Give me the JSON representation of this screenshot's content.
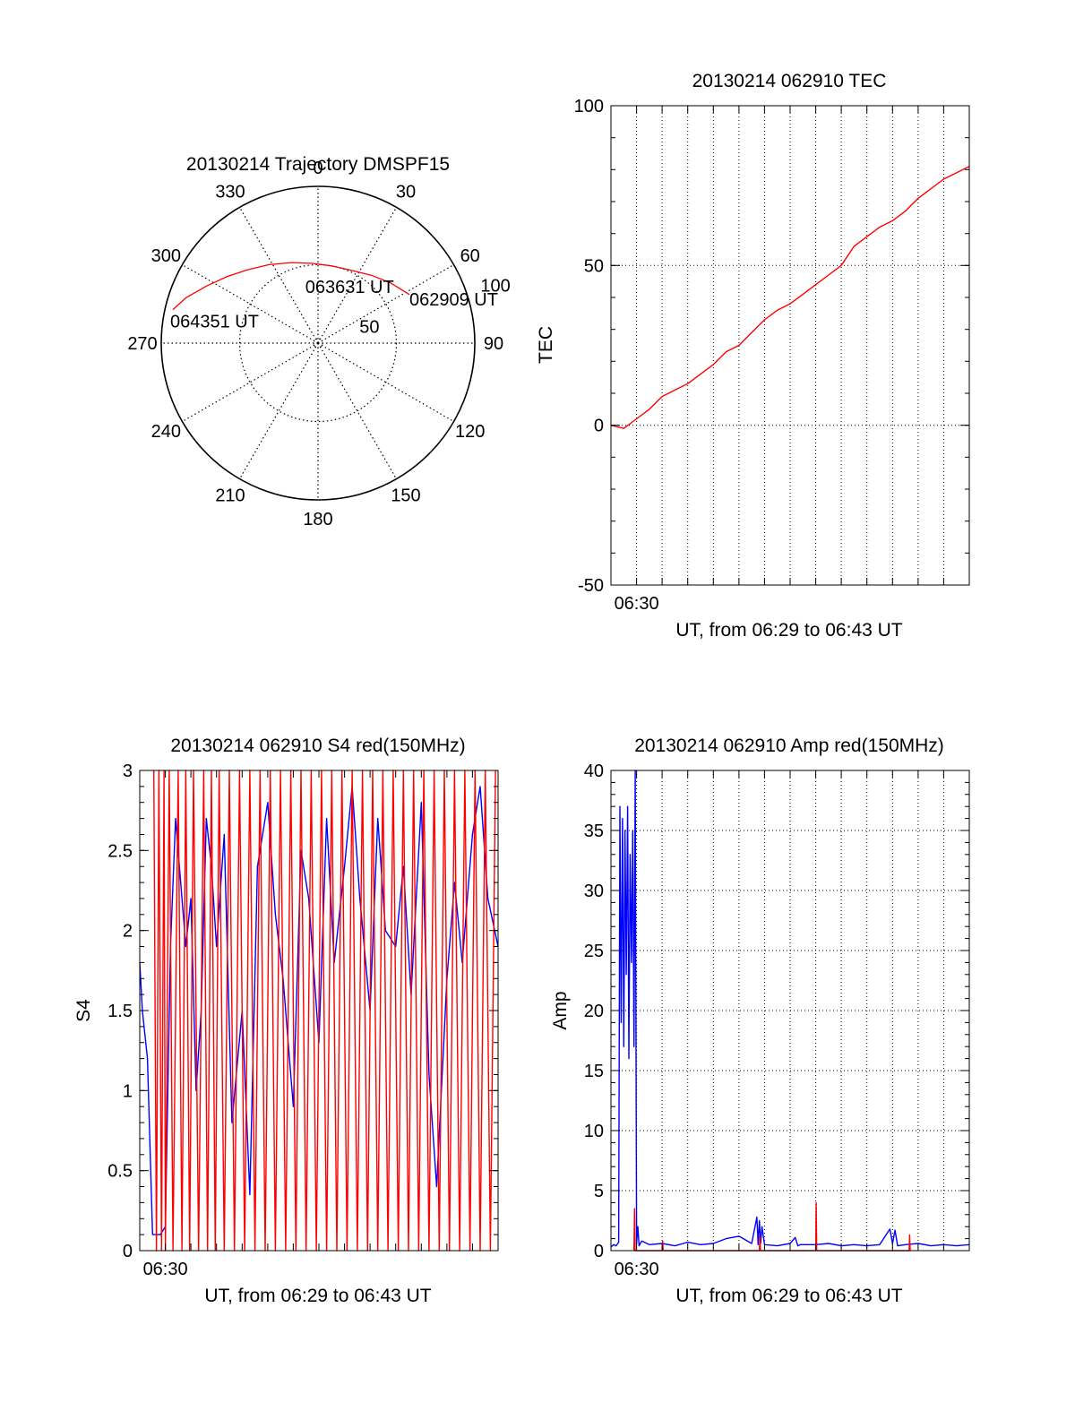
{
  "chart_data": [
    {
      "id": "trajectory",
      "type": "polar",
      "title": "20130214 Trajectory DMSPF15",
      "azimuth_labels": [
        "0",
        "30",
        "60",
        "90",
        "120",
        "150",
        "180",
        "210",
        "240",
        "270",
        "300",
        "330"
      ],
      "azimuth_values": [
        0,
        30,
        60,
        90,
        120,
        150,
        180,
        210,
        240,
        270,
        300,
        330
      ],
      "rings": [
        0,
        50,
        100
      ],
      "ring_labels": [
        {
          "value": 50,
          "text": "50"
        },
        {
          "value": 100,
          "text": "100"
        }
      ],
      "radius_max": 100,
      "grid": true,
      "track_color": "#ff0000",
      "track": [
        {
          "az": 62,
          "r": 66
        },
        {
          "az": 50,
          "r": 60
        },
        {
          "az": 38,
          "r": 55
        },
        {
          "az": 24,
          "r": 51
        },
        {
          "az": 10,
          "r": 50
        },
        {
          "az": -4,
          "r": 51
        },
        {
          "az": -18,
          "r": 54
        },
        {
          "az": -32,
          "r": 59
        },
        {
          "az": -44,
          "r": 65
        },
        {
          "az": -54,
          "r": 72
        },
        {
          "az": -63,
          "r": 80
        },
        {
          "az": -71,
          "r": 89
        },
        {
          "az": -77,
          "r": 95
        }
      ],
      "annotations": [
        {
          "text": "062909 UT",
          "az": 62,
          "r": 66
        },
        {
          "text": "063631 UT",
          "az": 10,
          "r": 50
        },
        {
          "text": "064351 UT",
          "az": -77,
          "r": 95
        }
      ]
    },
    {
      "id": "tec",
      "type": "line",
      "title": "20130214 062910 TEC",
      "xlabel": "UT, from 06:29 to 06:43 UT",
      "ylabel": "TEC",
      "xlim": [
        29.0,
        43.0
      ],
      "x_unit": "minute after 06:00 UT",
      "xticks": [
        {
          "value": 30,
          "label": "06:30"
        }
      ],
      "ylim": [
        -50,
        100
      ],
      "yticks": [
        -50,
        0,
        50,
        100
      ],
      "grid": true,
      "series": [
        {
          "color": "#ff0000",
          "x": [
            29.0,
            29.5,
            30.0,
            30.5,
            31.0,
            31.5,
            32.0,
            32.5,
            33.0,
            33.5,
            34.0,
            34.5,
            35.0,
            35.5,
            36.0,
            36.5,
            37.0,
            37.5,
            38.0,
            38.5,
            39.0,
            39.5,
            40.0,
            40.5,
            41.0,
            41.5,
            42.0,
            42.5,
            43.0
          ],
          "y": [
            0,
            -1,
            2,
            5,
            9,
            11,
            13,
            16,
            19,
            23,
            25,
            29,
            33,
            36,
            38,
            41,
            44,
            47,
            50,
            56,
            59,
            62,
            64,
            67,
            71,
            74,
            77,
            79,
            81
          ]
        }
      ]
    },
    {
      "id": "s4",
      "type": "line",
      "title": "20130214 062910 S4 red(150MHz)",
      "xlabel": "UT, from 06:29 to 06:43 UT",
      "ylabel": "S4",
      "xlim": [
        29.0,
        43.0
      ],
      "x_unit": "minute after 06:00 UT",
      "xticks": [
        {
          "value": 30,
          "label": "06:30"
        }
      ],
      "ylim": [
        0,
        3
      ],
      "yticks": [
        0,
        0.5,
        1,
        1.5,
        2,
        2.5,
        3
      ],
      "ytick_labels": [
        "0",
        "0.5",
        "1",
        "1.5",
        "2",
        "2.5",
        "3"
      ],
      "grid": false,
      "series": [
        {
          "color": "#0000ff",
          "x": [
            29.0,
            29.1,
            29.3,
            29.5,
            29.8,
            30.0,
            30.2,
            30.4,
            30.6,
            30.8,
            31.0,
            31.2,
            31.4,
            31.6,
            31.8,
            32.0,
            32.3,
            32.6,
            33.0,
            33.3,
            33.6,
            34.0,
            34.3,
            34.6,
            35.0,
            35.3,
            35.6,
            36.0,
            36.3,
            36.6,
            37.0,
            37.3,
            37.6,
            38.0,
            38.3,
            38.6,
            39.0,
            39.3,
            39.6,
            40.0,
            40.3,
            40.6,
            41.0,
            41.3,
            41.6,
            42.0,
            42.3,
            42.6,
            43.0
          ],
          "y": [
            1.8,
            1.5,
            1.2,
            0.1,
            0.1,
            0.15,
            1.9,
            2.7,
            2.3,
            1.9,
            2.2,
            1.0,
            1.5,
            2.7,
            2.4,
            1.9,
            2.6,
            0.8,
            1.5,
            0.35,
            2.4,
            2.8,
            2.1,
            1.7,
            0.9,
            2.5,
            2.2,
            1.3,
            2.7,
            1.8,
            2.4,
            2.9,
            2.2,
            1.5,
            2.7,
            2.0,
            1.9,
            2.4,
            1.6,
            2.8,
            1.1,
            0.4,
            1.7,
            2.3,
            1.8,
            2.6,
            2.9,
            2.2,
            1.9
          ]
        },
        {
          "color": "#ff0000",
          "x": [
            29.55,
            29.65,
            29.75,
            29.85,
            29.95,
            30.0,
            30.15,
            30.3,
            30.5,
            30.65,
            30.8,
            30.95,
            31.1,
            31.3,
            31.5,
            31.65,
            31.8,
            31.95,
            32.1,
            32.3,
            32.5,
            32.7,
            32.9,
            33.1,
            33.3,
            33.5,
            33.7,
            33.9,
            34.1,
            34.3,
            34.5,
            34.7,
            34.9,
            35.1,
            35.3,
            35.5,
            35.7,
            35.9,
            36.1,
            36.3,
            36.5,
            36.7,
            36.9,
            37.1,
            37.3,
            37.5,
            37.7,
            37.9,
            38.1,
            38.3,
            38.5,
            38.7,
            38.9,
            39.1,
            39.3,
            39.5,
            39.7,
            39.9,
            40.1,
            40.3,
            40.5,
            40.7,
            40.9,
            41.1,
            41.3,
            41.5,
            41.7,
            41.9,
            42.1,
            42.3,
            42.5,
            42.7,
            42.9
          ],
          "y": [
            3,
            0,
            3,
            0,
            3,
            0,
            3,
            0,
            3,
            0,
            3,
            0,
            3,
            0,
            3,
            0,
            3,
            0,
            3,
            0,
            3,
            0,
            3,
            0,
            3,
            0,
            3,
            0,
            3,
            0,
            3,
            0,
            3,
            0,
            3,
            0,
            3,
            0,
            3,
            0,
            3,
            0,
            3,
            0,
            3,
            0,
            3,
            0,
            3,
            0,
            3,
            0,
            3,
            0,
            3,
            0,
            3,
            0,
            3,
            0,
            3,
            0,
            3,
            0,
            3,
            0,
            3,
            0,
            3,
            0,
            3,
            0,
            3
          ]
        }
      ]
    },
    {
      "id": "amp",
      "type": "line",
      "title": "20130214 062910 Amp red(150MHz)",
      "xlabel": "UT, from 06:29 to 06:43 UT",
      "ylabel": "Amp",
      "xlim": [
        29.0,
        43.0
      ],
      "x_unit": "minute after 06:00 UT",
      "xticks": [
        {
          "value": 30,
          "label": "06:30"
        }
      ],
      "ylim": [
        0,
        40
      ],
      "yticks": [
        0,
        5,
        10,
        15,
        20,
        25,
        30,
        35,
        40
      ],
      "grid": true,
      "series": [
        {
          "color": "#0000ff",
          "x": [
            29.0,
            29.1,
            29.2,
            29.3,
            29.35,
            29.4,
            29.45,
            29.5,
            29.55,
            29.6,
            29.65,
            29.7,
            29.75,
            29.8,
            29.85,
            29.9,
            29.95,
            30.0,
            30.05,
            30.1,
            30.2,
            30.5,
            31.0,
            31.5,
            32.0,
            32.5,
            33.0,
            33.5,
            34.0,
            34.5,
            34.7,
            34.75,
            34.8,
            34.85,
            34.9,
            35.0,
            35.5,
            36.0,
            36.2,
            36.3,
            36.4,
            37.0,
            37.5,
            38.0,
            38.5,
            39.0,
            39.5,
            39.9,
            40.0,
            40.1,
            40.2,
            40.5,
            41.0,
            41.5,
            42.0,
            42.5,
            43.0
          ],
          "y": [
            0.3,
            0.5,
            0.4,
            0.7,
            37,
            19,
            36,
            17,
            35,
            23,
            37,
            16,
            33,
            24,
            35,
            17,
            40,
            0.6,
            2,
            0.4,
            0.8,
            0.5,
            0.6,
            0.4,
            0.7,
            0.5,
            0.6,
            1,
            1.2,
            0.6,
            2.8,
            0.5,
            2.5,
            0.6,
            2,
            0.5,
            0.4,
            0.6,
            1.1,
            0.4,
            0.5,
            0.5,
            0.6,
            0.4,
            0.5,
            0.4,
            0.5,
            1.8,
            0.6,
            1.7,
            0.4,
            0.5,
            0.6,
            0.4,
            0.5,
            0.4,
            0.5
          ]
        },
        {
          "color": "#ff0000",
          "x": [
            29.9,
            29.92,
            29.94,
            31.0,
            31.02,
            31.04,
            34.8,
            34.82,
            34.84,
            37.0,
            37.02,
            37.04,
            40.65,
            40.67,
            40.69
          ],
          "y": [
            0,
            3.5,
            0,
            0,
            0.8,
            0,
            0,
            1.2,
            0,
            0,
            4,
            0,
            0,
            1.3,
            0
          ]
        }
      ]
    }
  ]
}
